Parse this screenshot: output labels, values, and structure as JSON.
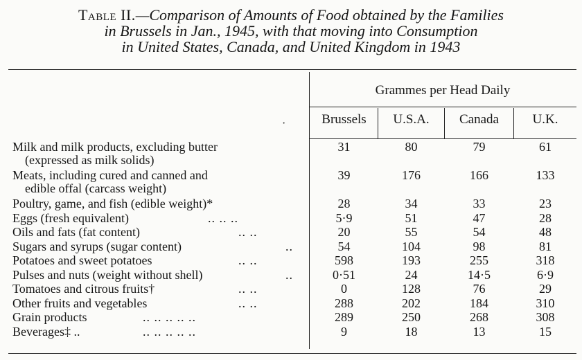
{
  "caption": {
    "lead": "Table II.",
    "dash": "—",
    "line1_italic": "Comparison of Amounts of Food obtained by the Families",
    "line2": "in Brussels in Jan., 1945, with that moving into Consumption",
    "line3": "in United States, Canada, and United Kingdom in 1943"
  },
  "header": {
    "group": "Grammes per Head Daily",
    "columns": [
      "Brussels",
      "U.S.A.",
      "Canada",
      "U.K."
    ]
  },
  "rows": [
    {
      "label": "Milk and milk products, excluding butter",
      "label2": "(expressed as milk solids)",
      "leaders": "",
      "values": [
        "31",
        "80",
        "79",
        "61"
      ]
    },
    {
      "label": "Meats, including cured and canned and",
      "label2": "edible offal (carcass weight)",
      "leaders": "",
      "values": [
        "39",
        "176",
        "166",
        "133"
      ]
    },
    {
      "label": "Poultry, game, and fish (edible weight)*",
      "label2": "",
      "leaders": "",
      "values": [
        "28",
        "34",
        "33",
        "23"
      ]
    },
    {
      "label": "Eggs (fresh equivalent)",
      "label2": "",
      "leaders": "..    ..    ..",
      "values": [
        "5·9",
        "51",
        "47",
        "28"
      ]
    },
    {
      "label": "Oils and fats (fat content)",
      "label2": "",
      "leaders": "..    ..",
      "values": [
        "20",
        "55",
        "54",
        "48"
      ]
    },
    {
      "label": "Sugars and syrups (sugar content)",
      "label2": "",
      "leaders": "..",
      "values": [
        "54",
        "104",
        "98",
        "81"
      ]
    },
    {
      "label": "Potatoes and sweet potatoes",
      "label2": "",
      "leaders": "..    ..",
      "values": [
        "598",
        "193",
        "255",
        "318"
      ]
    },
    {
      "label": "Pulses and nuts (weight without shell)",
      "label2": "",
      "leaders": "..",
      "values": [
        "0·51",
        "24",
        "14·5",
        "6·9"
      ]
    },
    {
      "label": "Tomatoes and citrous fruits†",
      "label2": "",
      "leaders": "..    ..",
      "values": [
        "0",
        "128",
        "76",
        "29"
      ]
    },
    {
      "label": "Other fruits and vegetables",
      "label2": "",
      "leaders": "..    ..",
      "values": [
        "288",
        "202",
        "184",
        "310"
      ]
    },
    {
      "label": "Grain products",
      "label2": "",
      "leaders": "..    ..    ..    ..    ..",
      "values": [
        "289",
        "250",
        "268",
        "308"
      ]
    },
    {
      "label": "Beverages‡ ..",
      "label2": "",
      "leaders": "..    ..    ..    ..    ..",
      "values": [
        "9",
        "18",
        "13",
        "15"
      ]
    }
  ]
}
